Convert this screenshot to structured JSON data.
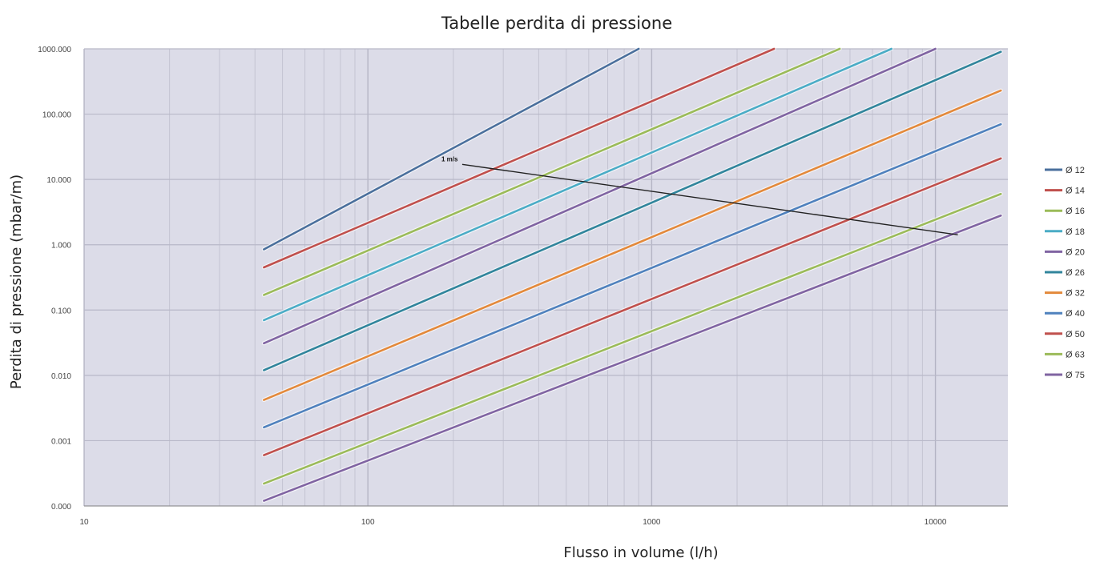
{
  "chart_data": {
    "type": "line",
    "title": "Tabelle perdita di pressione",
    "xlabel": "Flusso in volume (l/h)",
    "ylabel": "Perdita di pressione (mbar/m)",
    "x_scale": "log",
    "y_scale": "log",
    "xlim": [
      10,
      18000
    ],
    "ylim": [
      0.0001,
      1000
    ],
    "x_ticks": [
      10,
      100,
      1000,
      10000
    ],
    "x_tick_labels": [
      "10",
      "100",
      "1000",
      "10000"
    ],
    "y_ticks": [
      0.0001,
      0.001,
      0.01,
      0.1,
      1,
      10,
      100,
      1000
    ],
    "y_tick_labels": [
      "0.000",
      "0.001",
      "0.010",
      "0.100",
      "1.000",
      "10.000",
      "100.000",
      "1000.000"
    ],
    "grid": true,
    "legend_position": "right",
    "series": [
      {
        "name": "Ø 12",
        "color": "#4a6f9c",
        "x": [
          43,
          900
        ],
        "y": [
          0.85,
          1000
        ]
      },
      {
        "name": "Ø 14",
        "color": "#c0504d",
        "x": [
          43,
          2700
        ],
        "y": [
          0.45,
          1000
        ]
      },
      {
        "name": "Ø 16",
        "color": "#9bbb59",
        "x": [
          43,
          4600
        ],
        "y": [
          0.17,
          1000
        ]
      },
      {
        "name": "Ø 18",
        "color": "#4bacc6",
        "x": [
          43,
          7000
        ],
        "y": [
          0.07,
          1000
        ]
      },
      {
        "name": "Ø 20",
        "color": "#8064a2",
        "x": [
          43,
          10000
        ],
        "y": [
          0.031,
          1000
        ]
      },
      {
        "name": "Ø 26",
        "color": "#31859c",
        "x": [
          43,
          17000
        ],
        "y": [
          0.012,
          900
        ]
      },
      {
        "name": "Ø 32",
        "color": "#e3893b",
        "x": [
          43,
          17000
        ],
        "y": [
          0.0042,
          230
        ]
      },
      {
        "name": "Ø 40",
        "color": "#4f81bd",
        "x": [
          43,
          17000
        ],
        "y": [
          0.0016,
          70
        ]
      },
      {
        "name": "Ø 50",
        "color": "#c0504d",
        "x": [
          43,
          17000
        ],
        "y": [
          0.0006,
          21
        ]
      },
      {
        "name": "Ø 63",
        "color": "#9bbb59",
        "x": [
          43,
          17000
        ],
        "y": [
          0.00022,
          6
        ]
      },
      {
        "name": "Ø 75",
        "color": "#8064a2",
        "x": [
          43,
          17000
        ],
        "y": [
          0.00012,
          2.8
        ]
      }
    ],
    "annotations": [
      {
        "text": "1 m/s",
        "x": [
          215,
          12000
        ],
        "y": [
          17,
          1.42
        ],
        "color": "#222222"
      }
    ]
  }
}
